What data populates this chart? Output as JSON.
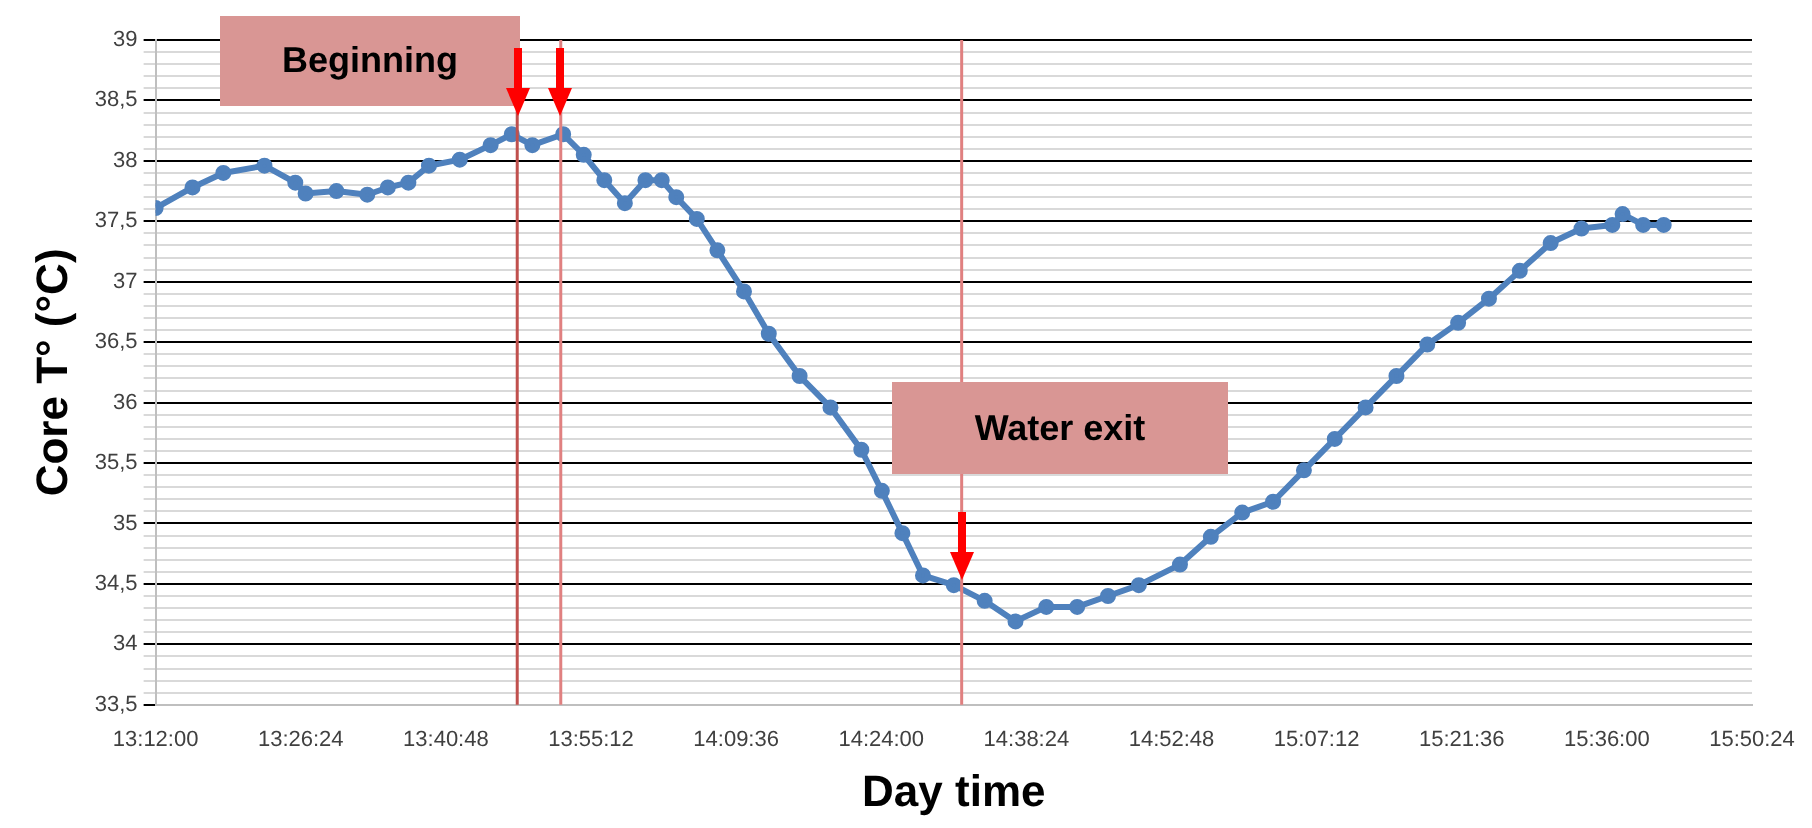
{
  "chart_data": {
    "type": "line",
    "xlabel": "Day time",
    "ylabel": "Core T° (°C)",
    "x": [
      13.2,
      13.261,
      13.312,
      13.38,
      13.431,
      13.448,
      13.499,
      13.55,
      13.584,
      13.618,
      13.652,
      13.703,
      13.754,
      13.789,
      13.823,
      13.874,
      13.908,
      13.942,
      13.976,
      14.01,
      14.037,
      14.061,
      14.095,
      14.129,
      14.173,
      14.214,
      14.265,
      14.316,
      14.367,
      14.401,
      14.435,
      14.469,
      14.52,
      14.571,
      14.622,
      14.673,
      14.724,
      14.775,
      14.826,
      14.894,
      14.945,
      14.997,
      15.048,
      15.099,
      15.15,
      15.201,
      15.252,
      15.303,
      15.354,
      15.405,
      15.456,
      15.507,
      15.558,
      15.609,
      15.626,
      15.66,
      15.694
    ],
    "series": [
      {
        "color": "#4f81bd",
        "values": [
          37.61,
          37.78,
          37.9,
          37.96,
          37.82,
          37.73,
          37.75,
          37.72,
          37.78,
          37.82,
          37.96,
          38.01,
          38.13,
          38.22,
          38.13,
          38.22,
          38.05,
          37.84,
          37.65,
          37.84,
          37.84,
          37.7,
          37.52,
          37.26,
          36.92,
          36.57,
          36.22,
          35.96,
          35.61,
          35.27,
          34.92,
          34.57,
          34.49,
          34.36,
          34.19,
          34.31,
          34.31,
          34.4,
          34.49,
          34.66,
          34.89,
          35.09,
          35.18,
          35.44,
          35.7,
          35.96,
          36.22,
          36.48,
          36.66,
          36.86,
          37.09,
          37.32,
          37.44,
          37.47,
          37.56,
          37.47,
          37.47
        ]
      }
    ],
    "marker": "circle",
    "grid": "y",
    "legend": false,
    "xlim": [
      13.2,
      15.84
    ],
    "xticks": [
      {
        "value": 13.2,
        "label": "13:12:00"
      },
      {
        "value": 13.44,
        "label": "13:26:24"
      },
      {
        "value": 13.68,
        "label": "13:40:48"
      },
      {
        "value": 13.92,
        "label": "13:55:12"
      },
      {
        "value": 14.16,
        "label": "14:09:36"
      },
      {
        "value": 14.4,
        "label": "14:24:00"
      },
      {
        "value": 14.64,
        "label": "14:38:24"
      },
      {
        "value": 14.88,
        "label": "14:52:48"
      },
      {
        "value": 15.12,
        "label": "15:07:12"
      },
      {
        "value": 15.36,
        "label": "15:21:36"
      },
      {
        "value": 15.6,
        "label": "15:36:00"
      },
      {
        "value": 15.84,
        "label": "15:50:24"
      }
    ],
    "ylim": [
      33.5,
      39
    ],
    "yticks": [
      {
        "value": 33.5,
        "label": "33,5"
      },
      {
        "value": 33.6,
        "label": null
      },
      {
        "value": 33.7,
        "label": null
      },
      {
        "value": 33.8,
        "label": null
      },
      {
        "value": 33.9,
        "label": null
      },
      {
        "value": 34,
        "label": "34"
      },
      {
        "value": 34.1,
        "label": null
      },
      {
        "value": 34.2,
        "label": null
      },
      {
        "value": 34.3,
        "label": null
      },
      {
        "value": 34.4,
        "label": null
      },
      {
        "value": 34.5,
        "label": "34,5"
      },
      {
        "value": 34.6,
        "label": null
      },
      {
        "value": 34.7,
        "label": null
      },
      {
        "value": 34.8,
        "label": null
      },
      {
        "value": 34.9,
        "label": null
      },
      {
        "value": 35,
        "label": "35"
      },
      {
        "value": 35.1,
        "label": null
      },
      {
        "value": 35.2,
        "label": null
      },
      {
        "value": 35.3,
        "label": null
      },
      {
        "value": 35.4,
        "label": null
      },
      {
        "value": 35.5,
        "label": "35,5"
      },
      {
        "value": 35.6,
        "label": null
      },
      {
        "value": 35.7,
        "label": null
      },
      {
        "value": 35.8,
        "label": null
      },
      {
        "value": 35.9,
        "label": null
      },
      {
        "value": 36,
        "label": "36"
      },
      {
        "value": 36.1,
        "label": null
      },
      {
        "value": 36.2,
        "label": null
      },
      {
        "value": 36.3,
        "label": null
      },
      {
        "value": 36.4,
        "label": null
      },
      {
        "value": 36.5,
        "label": "36,5"
      },
      {
        "value": 36.6,
        "label": null
      },
      {
        "value": 36.7,
        "label": null
      },
      {
        "value": 36.8,
        "label": null
      },
      {
        "value": 36.9,
        "label": null
      },
      {
        "value": 37,
        "label": "37"
      },
      {
        "value": 37.1,
        "label": null
      },
      {
        "value": 37.2,
        "label": null
      },
      {
        "value": 37.3,
        "label": null
      },
      {
        "value": 37.4,
        "label": null
      },
      {
        "value": 37.5,
        "label": "37,5"
      },
      {
        "value": 37.6,
        "label": null
      },
      {
        "value": 37.7,
        "label": null
      },
      {
        "value": 37.8,
        "label": null
      },
      {
        "value": 37.9,
        "label": null
      },
      {
        "value": 38,
        "label": "38"
      },
      {
        "value": 38.1,
        "label": null
      },
      {
        "value": 38.2,
        "label": null
      },
      {
        "value": 38.3,
        "label": null
      },
      {
        "value": 38.4,
        "label": null
      },
      {
        "value": 38.5,
        "label": "38,5"
      },
      {
        "value": 38.6,
        "label": null
      },
      {
        "value": 38.7,
        "label": null
      },
      {
        "value": 38.8,
        "label": null
      },
      {
        "value": 38.9,
        "label": null
      },
      {
        "value": 39,
        "label": "39"
      }
    ],
    "ref_lines": [
      {
        "axis": "x",
        "value": 13.798,
        "color": "#c0504d"
      },
      {
        "axis": "x",
        "value": 13.87,
        "color": "#e08080"
      },
      {
        "axis": "x",
        "value": 14.533,
        "color": "#e08080"
      }
    ],
    "annotations": [
      "Beginning",
      "Water exit"
    ]
  }
}
